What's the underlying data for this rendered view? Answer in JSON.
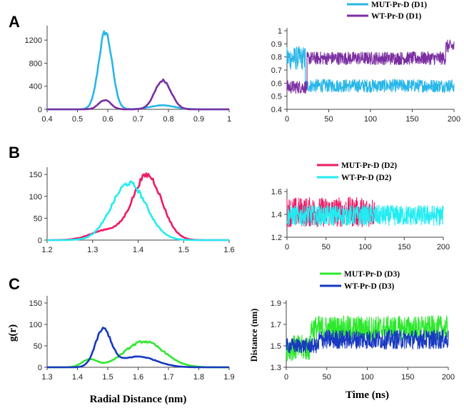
{
  "chart_data": [
    {
      "panel": "A",
      "type": "line",
      "xlim": [
        0.4,
        1.0
      ],
      "ylim": [
        0,
        1400
      ],
      "xticks": [
        "0.4",
        "0.5",
        "0.6",
        "0.7",
        "0.8",
        "0.9",
        "1"
      ],
      "yticks": [
        "0",
        "400",
        "800",
        "1200"
      ],
      "series": [
        {
          "name": "MUT-Pr-D (D1)",
          "color": "#29b6e8",
          "peaks": [
            {
              "center": 0.592,
              "height": 1340,
              "width": 0.022
            },
            {
              "center": 0.78,
              "height": 70,
              "width": 0.04
            }
          ]
        },
        {
          "name": "WT-Pr-D (D1)",
          "color": "#7b2ea0",
          "peaks": [
            {
              "center": 0.59,
              "height": 160,
              "width": 0.02
            },
            {
              "center": 0.782,
              "height": 500,
              "width": 0.027
            }
          ]
        }
      ]
    },
    {
      "panel": "A-time",
      "type": "line",
      "xlim": [
        0,
        200
      ],
      "ylim": [
        0.4,
        1.0
      ],
      "xticks": [
        "0",
        "50",
        "100",
        "150",
        "200"
      ],
      "yticks": [
        "0.4",
        "0.5",
        "0.6",
        "0.7",
        "0.8",
        "0.9",
        "1"
      ],
      "legend": [
        {
          "name": "MUT-Pr-D (D1)",
          "color": "#29b6e8"
        },
        {
          "name": "WT-Pr-D (D1)",
          "color": "#7b2ea0"
        }
      ],
      "series": [
        {
          "name": "MUT-Pr-D (D1)",
          "color": "#29b6e8",
          "segments": [
            {
              "t0": 0,
              "t1": 22,
              "mean": 0.79,
              "amp": 0.09
            },
            {
              "t0": 22,
              "t1": 200,
              "mean": 0.58,
              "amp": 0.05
            }
          ]
        },
        {
          "name": "WT-Pr-D (D1)",
          "color": "#7b2ea0",
          "segments": [
            {
              "t0": 0,
              "t1": 24,
              "mean": 0.57,
              "amp": 0.05
            },
            {
              "t0": 24,
              "t1": 190,
              "mean": 0.79,
              "amp": 0.05
            },
            {
              "t0": 190,
              "t1": 200,
              "mean": 0.88,
              "amp": 0.05
            }
          ]
        }
      ]
    },
    {
      "panel": "B",
      "type": "line",
      "xlim": [
        1.2,
        1.6
      ],
      "ylim": [
        0,
        160
      ],
      "xticks": [
        "1.2",
        "1.3",
        "1.4",
        "1.5",
        "1.6"
      ],
      "yticks": [
        "0",
        "50",
        "100",
        "150"
      ],
      "series": [
        {
          "name": "MUT-Pr-D (D2)",
          "color": "#ee1a66",
          "peaks": [
            {
              "center": 1.42,
              "height": 148,
              "width": 0.032
            },
            {
              "center": 1.33,
              "height": 22,
              "width": 0.035
            }
          ]
        },
        {
          "name": "WT-Pr-D (D2)",
          "color": "#22ecf2",
          "peaks": [
            {
              "center": 1.38,
              "height": 130,
              "width": 0.038
            }
          ]
        }
      ]
    },
    {
      "panel": "B-time",
      "type": "line",
      "xlim": [
        0,
        200
      ],
      "ylim": [
        1.2,
        1.6
      ],
      "xticks": [
        "0",
        "50",
        "100",
        "150",
        "200"
      ],
      "yticks": [
        "1.2",
        "1.4",
        "1.6"
      ],
      "legend": [
        {
          "name": "MUT-Pr-D (D2)",
          "color": "#ee1a66"
        },
        {
          "name": "WT-Pr-D  (D2)",
          "color": "#22ecf2"
        }
      ],
      "series": [
        {
          "name": "MUT-Pr-D (D2)",
          "color": "#ee1a66",
          "segments": [
            {
              "t0": 0,
              "t1": 112,
              "mean": 1.42,
              "amp": 0.13
            }
          ]
        },
        {
          "name": "WT-Pr-D (D2)",
          "color": "#22ecf2",
          "segments": [
            {
              "t0": 0,
              "t1": 200,
              "mean": 1.39,
              "amp": 0.09
            }
          ]
        }
      ]
    },
    {
      "panel": "C",
      "type": "line",
      "xlim": [
        1.3,
        1.9
      ],
      "ylim": [
        0,
        160
      ],
      "xticks": [
        "1.3",
        "1.4",
        "1.5",
        "1.6",
        "1.7",
        "1.8",
        "1.9"
      ],
      "yticks": [
        "0",
        "50",
        "100",
        "150"
      ],
      "xlabel": "Radial Distance (nm)",
      "ylabel": "g(r)",
      "series": [
        {
          "name": "MUT-Pr-D (D3)",
          "color": "#2ee82e",
          "peaks": [
            {
              "center": 1.62,
              "height": 60,
              "width": 0.065
            },
            {
              "center": 1.44,
              "height": 18,
              "width": 0.025
            }
          ]
        },
        {
          "name": "WT-Pr-D (D3)",
          "color": "#1838c0",
          "peaks": [
            {
              "center": 1.485,
              "height": 86,
              "width": 0.026
            },
            {
              "center": 1.6,
              "height": 25,
              "width": 0.06
            }
          ]
        }
      ]
    },
    {
      "panel": "C-time",
      "type": "line",
      "xlim": [
        0,
        200
      ],
      "ylim": [
        1.3,
        1.9
      ],
      "xticks": [
        "0",
        "50",
        "100",
        "150",
        "200"
      ],
      "yticks": [
        "1.3",
        "1.5",
        "1.7",
        "1.9"
      ],
      "xlabel": "Time (ns)",
      "ylabel": "Distance (nm)",
      "legend": [
        {
          "name": "MUT-Pr-D (D3)",
          "color": "#2ee82e"
        },
        {
          "name": "WT-Pr-D  (D3)",
          "color": "#1838c0"
        }
      ],
      "series": [
        {
          "name": "MUT-Pr-D (D3)",
          "color": "#2ee82e",
          "segments": [
            {
              "t0": 0,
              "t1": 30,
              "mean": 1.48,
              "amp": 0.12
            },
            {
              "t0": 30,
              "t1": 200,
              "mean": 1.66,
              "amp": 0.12
            }
          ]
        },
        {
          "name": "WT-Pr-D (D3)",
          "color": "#1838c0",
          "segments": [
            {
              "t0": 0,
              "t1": 40,
              "mean": 1.5,
              "amp": 0.07
            },
            {
              "t0": 40,
              "t1": 200,
              "mean": 1.56,
              "amp": 0.09
            }
          ]
        }
      ]
    }
  ],
  "panel_labels": [
    "A",
    "B",
    "C"
  ]
}
